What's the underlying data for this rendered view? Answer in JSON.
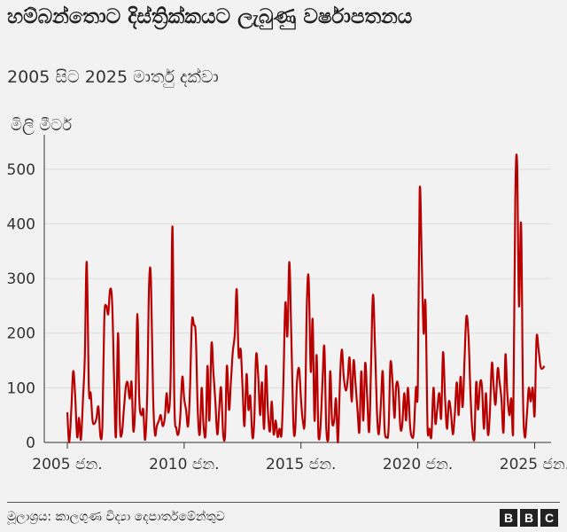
{
  "chart_data": {
    "type": "line",
    "title": "හම්බන්තොට දිස්ත්‍රික්කයට ලැබුණු වර්ෂාපතනය",
    "subtitle": "2005 සිට 2025 මාර්තු දක්වා",
    "ylabel": "මිලි මීටර්",
    "xlabel": "",
    "ylim": [
      0,
      550
    ],
    "yticks": [
      0,
      100,
      200,
      300,
      400,
      500
    ],
    "xlim": [
      2005.0,
      2025.4
    ],
    "xticks": [
      {
        "value": 2005.0,
        "label": "2005 ජන."
      },
      {
        "value": 2010.0,
        "label": "2010 ජන."
      },
      {
        "value": 2015.0,
        "label": "2015 ජන."
      },
      {
        "value": 2020.0,
        "label": "2020 ජන."
      },
      {
        "value": 2025.0,
        "label": "2025 ජන."
      }
    ],
    "grid": "horizontal",
    "color": "#b80000",
    "series": [
      {
        "name": "",
        "points": [
          [
            2005.0,
            55
          ],
          [
            2005.08,
            0
          ],
          [
            2005.17,
            60
          ],
          [
            2005.25,
            130
          ],
          [
            2005.33,
            90
          ],
          [
            2005.42,
            10
          ],
          [
            2005.5,
            45
          ],
          [
            2005.58,
            5
          ],
          [
            2005.67,
            80
          ],
          [
            2005.75,
            160
          ],
          [
            2005.83,
            330
          ],
          [
            2005.92,
            100
          ],
          [
            2006.0,
            90
          ],
          [
            2006.08,
            40
          ],
          [
            2006.17,
            35
          ],
          [
            2006.25,
            45
          ],
          [
            2006.33,
            65
          ],
          [
            2006.42,
            10
          ],
          [
            2006.5,
            30
          ],
          [
            2006.58,
            225
          ],
          [
            2006.67,
            250
          ],
          [
            2006.75,
            235
          ],
          [
            2006.83,
            280
          ],
          [
            2006.92,
            255
          ],
          [
            2007.0,
            120
          ],
          [
            2007.08,
            10
          ],
          [
            2007.17,
            200
          ],
          [
            2007.25,
            35
          ],
          [
            2007.33,
            15
          ],
          [
            2007.42,
            60
          ],
          [
            2007.5,
            100
          ],
          [
            2007.58,
            110
          ],
          [
            2007.67,
            80
          ],
          [
            2007.75,
            110
          ],
          [
            2007.83,
            20
          ],
          [
            2007.92,
            85
          ],
          [
            2008.0,
            235
          ],
          [
            2008.08,
            80
          ],
          [
            2008.17,
            50
          ],
          [
            2008.25,
            60
          ],
          [
            2008.33,
            5
          ],
          [
            2008.42,
            90
          ],
          [
            2008.5,
            290
          ],
          [
            2008.58,
            295
          ],
          [
            2008.67,
            85
          ],
          [
            2008.75,
            15
          ],
          [
            2008.83,
            30
          ],
          [
            2008.92,
            40
          ],
          [
            2009.0,
            50
          ],
          [
            2009.08,
            30
          ],
          [
            2009.17,
            45
          ],
          [
            2009.25,
            90
          ],
          [
            2009.33,
            55
          ],
          [
            2009.42,
            120
          ],
          [
            2009.5,
            395
          ],
          [
            2009.58,
            75
          ],
          [
            2009.67,
            25
          ],
          [
            2009.75,
            15
          ],
          [
            2009.83,
            45
          ],
          [
            2009.92,
            120
          ],
          [
            2010.0,
            80
          ],
          [
            2010.08,
            60
          ],
          [
            2010.17,
            30
          ],
          [
            2010.25,
            100
          ],
          [
            2010.33,
            220
          ],
          [
            2010.42,
            215
          ],
          [
            2010.5,
            195
          ],
          [
            2010.58,
            60
          ],
          [
            2010.67,
            15
          ],
          [
            2010.75,
            100
          ],
          [
            2010.83,
            30
          ],
          [
            2010.92,
            15
          ],
          [
            2011.0,
            140
          ],
          [
            2011.08,
            40
          ],
          [
            2011.17,
            180
          ],
          [
            2011.25,
            130
          ],
          [
            2011.33,
            80
          ],
          [
            2011.42,
            15
          ],
          [
            2011.5,
            60
          ],
          [
            2011.58,
            100
          ],
          [
            2011.67,
            15
          ],
          [
            2011.75,
            10
          ],
          [
            2011.83,
            140
          ],
          [
            2011.92,
            60
          ],
          [
            2012.0,
            110
          ],
          [
            2012.08,
            165
          ],
          [
            2012.17,
            200
          ],
          [
            2012.25,
            280
          ],
          [
            2012.33,
            160
          ],
          [
            2012.42,
            170
          ],
          [
            2012.5,
            100
          ],
          [
            2012.58,
            30
          ],
          [
            2012.67,
            125
          ],
          [
            2012.75,
            60
          ],
          [
            2012.83,
            85
          ],
          [
            2012.92,
            10
          ],
          [
            2013.0,
            40
          ],
          [
            2013.08,
            160
          ],
          [
            2013.17,
            120
          ],
          [
            2013.25,
            50
          ],
          [
            2013.33,
            110
          ],
          [
            2013.42,
            25
          ],
          [
            2013.5,
            140
          ],
          [
            2013.58,
            60
          ],
          [
            2013.67,
            20
          ],
          [
            2013.75,
            75
          ],
          [
            2013.83,
            15
          ],
          [
            2013.92,
            40
          ],
          [
            2014.0,
            10
          ],
          [
            2014.08,
            25
          ],
          [
            2014.17,
            15
          ],
          [
            2014.25,
            110
          ],
          [
            2014.33,
            255
          ],
          [
            2014.42,
            195
          ],
          [
            2014.5,
            330
          ],
          [
            2014.58,
            210
          ],
          [
            2014.67,
            40
          ],
          [
            2014.75,
            20
          ],
          [
            2014.83,
            110
          ],
          [
            2014.92,
            135
          ],
          [
            2015.0,
            80
          ],
          [
            2015.08,
            40
          ],
          [
            2015.17,
            45
          ],
          [
            2015.25,
            250
          ],
          [
            2015.33,
            300
          ],
          [
            2015.42,
            130
          ],
          [
            2015.5,
            225
          ],
          [
            2015.58,
            40
          ],
          [
            2015.67,
            160
          ],
          [
            2015.75,
            10
          ],
          [
            2015.83,
            25
          ],
          [
            2015.92,
            110
          ],
          [
            2016.0,
            175
          ],
          [
            2016.08,
            30
          ],
          [
            2016.17,
            5
          ],
          [
            2016.25,
            130
          ],
          [
            2016.33,
            40
          ],
          [
            2016.42,
            40
          ],
          [
            2016.5,
            80
          ],
          [
            2016.58,
            0
          ],
          [
            2016.67,
            115
          ],
          [
            2016.75,
            170
          ],
          [
            2016.83,
            120
          ],
          [
            2016.92,
            95
          ],
          [
            2017.0,
            115
          ],
          [
            2017.08,
            155
          ],
          [
            2017.17,
            75
          ],
          [
            2017.25,
            150
          ],
          [
            2017.33,
            110
          ],
          [
            2017.42,
            60
          ],
          [
            2017.5,
            20
          ],
          [
            2017.58,
            130
          ],
          [
            2017.67,
            40
          ],
          [
            2017.75,
            145
          ],
          [
            2017.83,
            85
          ],
          [
            2017.92,
            20
          ],
          [
            2018.0,
            140
          ],
          [
            2018.08,
            270
          ],
          [
            2018.17,
            175
          ],
          [
            2018.25,
            60
          ],
          [
            2018.33,
            15
          ],
          [
            2018.42,
            70
          ],
          [
            2018.5,
            130
          ],
          [
            2018.58,
            25
          ],
          [
            2018.67,
            10
          ],
          [
            2018.75,
            25
          ],
          [
            2018.83,
            145
          ],
          [
            2018.92,
            110
          ],
          [
            2019.0,
            45
          ],
          [
            2019.08,
            105
          ],
          [
            2019.17,
            100
          ],
          [
            2019.25,
            30
          ],
          [
            2019.33,
            30
          ],
          [
            2019.42,
            90
          ],
          [
            2019.5,
            40
          ],
          [
            2019.58,
            100
          ],
          [
            2019.67,
            30
          ],
          [
            2019.75,
            10
          ],
          [
            2019.83,
            20
          ],
          [
            2019.92,
            100
          ],
          [
            2020.0,
            100
          ],
          [
            2020.08,
            460
          ],
          [
            2020.17,
            330
          ],
          [
            2020.25,
            200
          ],
          [
            2020.33,
            255
          ],
          [
            2020.42,
            20
          ],
          [
            2020.5,
            25
          ],
          [
            2020.58,
            10
          ],
          [
            2020.67,
            100
          ],
          [
            2020.75,
            35
          ],
          [
            2020.83,
            60
          ],
          [
            2020.92,
            90
          ],
          [
            2021.0,
            45
          ],
          [
            2021.08,
            165
          ],
          [
            2021.17,
            80
          ],
          [
            2021.25,
            25
          ],
          [
            2021.33,
            75
          ],
          [
            2021.42,
            55
          ],
          [
            2021.5,
            15
          ],
          [
            2021.58,
            50
          ],
          [
            2021.67,
            110
          ],
          [
            2021.75,
            50
          ],
          [
            2021.83,
            120
          ],
          [
            2021.92,
            65
          ],
          [
            2022.0,
            150
          ],
          [
            2022.08,
            230
          ],
          [
            2022.17,
            195
          ],
          [
            2022.25,
            95
          ],
          [
            2022.33,
            25
          ],
          [
            2022.42,
            5
          ],
          [
            2022.5,
            110
          ],
          [
            2022.58,
            60
          ],
          [
            2022.67,
            110
          ],
          [
            2022.75,
            100
          ],
          [
            2022.83,
            25
          ],
          [
            2022.92,
            90
          ],
          [
            2023.0,
            15
          ],
          [
            2023.08,
            50
          ],
          [
            2023.17,
            145
          ],
          [
            2023.25,
            100
          ],
          [
            2023.33,
            70
          ],
          [
            2023.42,
            135
          ],
          [
            2023.5,
            110
          ],
          [
            2023.58,
            80
          ],
          [
            2023.67,
            20
          ],
          [
            2023.75,
            160
          ],
          [
            2023.83,
            90
          ],
          [
            2023.92,
            50
          ],
          [
            2024.0,
            80
          ],
          [
            2024.08,
            15
          ],
          [
            2024.17,
            440
          ],
          [
            2024.25,
            510
          ],
          [
            2024.33,
            250
          ],
          [
            2024.42,
            400
          ],
          [
            2024.5,
            90
          ],
          [
            2024.58,
            10
          ],
          [
            2024.67,
            50
          ],
          [
            2024.75,
            100
          ],
          [
            2024.83,
            75
          ],
          [
            2024.92,
            100
          ],
          [
            2025.0,
            50
          ],
          [
            2025.08,
            190
          ],
          [
            2025.17,
            170
          ],
          [
            2025.25,
            140
          ],
          [
            2025.33,
            135
          ],
          [
            2025.42,
            140
          ]
        ]
      }
    ]
  },
  "footer": {
    "source": "මූලාශ්‍රය: කාලගුණ විද්‍යා දෙපාර්තමේන්තුව",
    "logo": [
      "B",
      "B",
      "C"
    ]
  }
}
